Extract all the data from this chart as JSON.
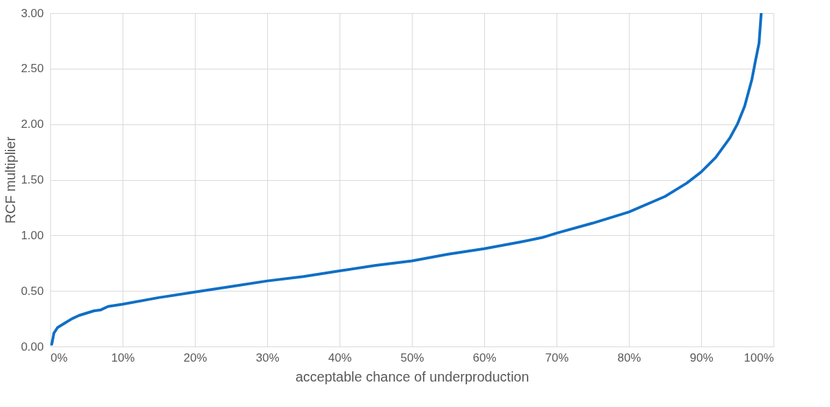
{
  "chart_data": {
    "type": "line",
    "xlabel": "acceptable chance of underproduction",
    "ylabel": "RCF multiplier",
    "x": [
      0.2,
      0.5,
      1,
      2,
      3,
      4,
      5,
      6,
      7,
      8,
      10,
      15,
      20,
      25,
      30,
      35,
      40,
      45,
      50,
      55,
      60,
      65,
      68,
      70,
      75,
      80,
      85,
      88,
      90,
      92,
      94,
      95,
      96,
      97,
      97.5,
      98,
      98.3
    ],
    "series": [
      {
        "color": "#0f6fc6",
        "values": [
          0.02,
          0.12,
          0.17,
          0.21,
          0.25,
          0.28,
          0.3,
          0.32,
          0.33,
          0.36,
          0.38,
          0.44,
          0.49,
          0.54,
          0.59,
          0.63,
          0.68,
          0.73,
          0.77,
          0.83,
          0.88,
          0.94,
          0.98,
          1.02,
          1.11,
          1.21,
          1.35,
          1.47,
          1.57,
          1.7,
          1.88,
          2.0,
          2.16,
          2.4,
          2.57,
          2.73,
          3.0
        ]
      }
    ],
    "xlim": [
      0,
      100
    ],
    "xticks": [
      {
        "value": 0,
        "label": "0%"
      },
      {
        "value": 10,
        "label": "10%"
      },
      {
        "value": 20,
        "label": "20%"
      },
      {
        "value": 30,
        "label": "30%"
      },
      {
        "value": 40,
        "label": "40%"
      },
      {
        "value": 50,
        "label": "50%"
      },
      {
        "value": 60,
        "label": "60%"
      },
      {
        "value": 70,
        "label": "70%"
      },
      {
        "value": 80,
        "label": "80%"
      },
      {
        "value": 90,
        "label": "90%"
      },
      {
        "value": 100,
        "label": "100%"
      }
    ],
    "ylim": [
      0,
      3
    ],
    "yticks": [
      {
        "value": 0,
        "label": "0.00"
      },
      {
        "value": 0.5,
        "label": "0.50"
      },
      {
        "value": 1,
        "label": "1.00"
      },
      {
        "value": 1.5,
        "label": "1.50"
      },
      {
        "value": 2,
        "label": "2.00"
      },
      {
        "value": 2.5,
        "label": "2.50"
      },
      {
        "value": 3,
        "label": "3.00"
      }
    ],
    "grid": true,
    "line_style": "solid"
  }
}
